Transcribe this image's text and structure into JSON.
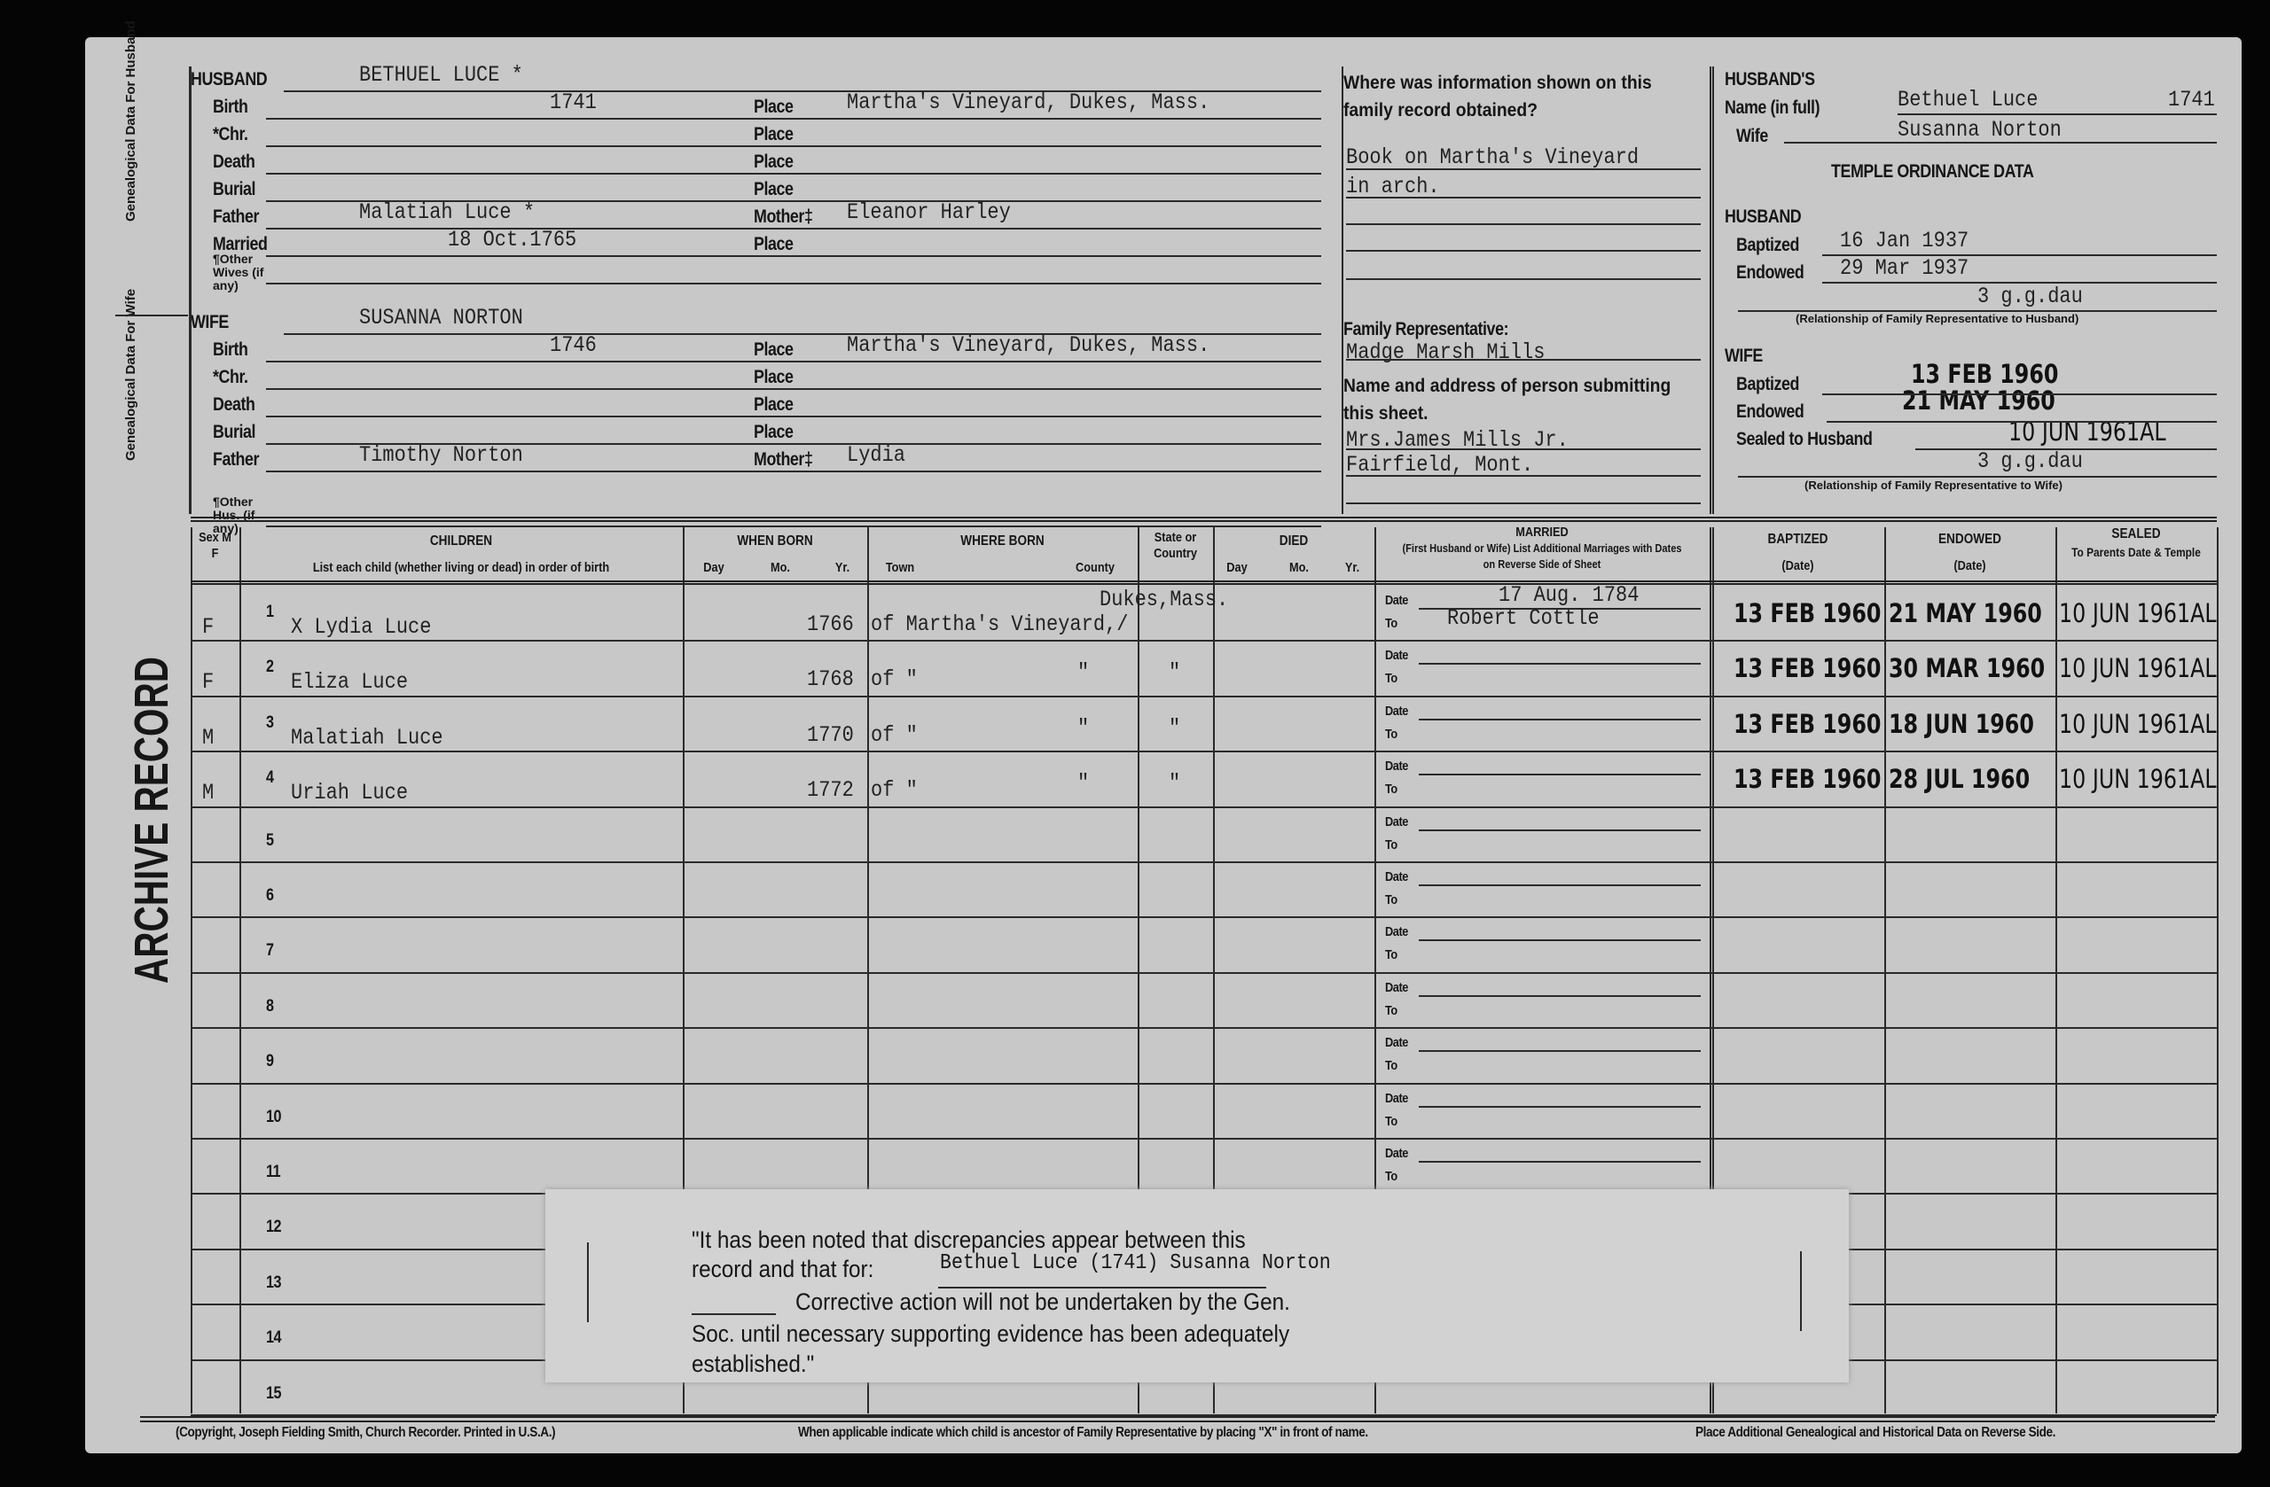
{
  "side_labels": {
    "husband": "Genealogical Data For Husband",
    "wife": "Genealogical Data For Wife",
    "archive": "ARCHIVE RECORD"
  },
  "husband": {
    "label": "HUSBAND",
    "name": "BETHUEL LUCE *",
    "birth_label": "Birth",
    "birth": "1741",
    "birth_place": "Martha's Vineyard, Dukes, Mass.",
    "chr_label": "*Chr.",
    "death_label": "Death",
    "burial_label": "Burial",
    "father_label": "Father",
    "father": "Malatiah Luce *",
    "mother_label": "Mother‡",
    "mother": "Eleanor Harley",
    "married_label": "Married",
    "married": "18 Oct.1765",
    "other_label": "¶Other Wives (if any)"
  },
  "wife": {
    "label": "WIFE",
    "name": "SUSANNA NORTON",
    "birth_label": "Birth",
    "birth": "1746",
    "birth_place": "Martha's Vineyard, Dukes, Mass.",
    "chr_label": "*Chr.",
    "death_label": "Death",
    "burial_label": "Burial",
    "father_label": "Father",
    "father": "Timothy Norton",
    "mother_label": "Mother‡",
    "mother": "Lydia",
    "other_label": "¶Other Hus. (if any)"
  },
  "place_label": "Place",
  "source": {
    "question": "Where was information shown on this family record obtained?",
    "line1": "Book on Martha's Vineyard",
    "line2": "in arch.",
    "rep_label": "Family Representative:",
    "rep": "Madge Marsh Mills",
    "submitter_label": "Name and address of person submitting this sheet.",
    "submitter1": "Mrs.James Mills Jr.",
    "submitter2": "Fairfield, Mont."
  },
  "ordinance": {
    "husbands_label": "HUSBAND'S",
    "name_label": "Name (in full)",
    "name": "Bethuel Luce",
    "year": "1741",
    "wife_label": "Wife",
    "wife": "Susanna Norton",
    "title": "TEMPLE ORDINANCE DATA",
    "husband_label": "HUSBAND",
    "baptized_label": "Baptized",
    "h_baptized": "16 Jan 1937",
    "endowed_label": "Endowed",
    "h_endowed": "29 Mar 1937",
    "h_relationship": "3 g.g.dau",
    "h_rel_caption": "(Relationship of Family Representative to Husband)",
    "wife_section_label": "WIFE",
    "w_baptized": "13 FEB 1960",
    "w_endowed": "21 MAY 1960",
    "sealed_label": "Sealed to Husband",
    "w_sealed": "10 JUN 1961AL",
    "w_relationship": "3 g.g.dau",
    "w_rel_caption": "(Relationship of Family Representative to Wife)"
  },
  "table_headers": {
    "sex": "Sex M F",
    "children": "CHILDREN",
    "children_sub": "List each child (whether living or dead) in order of birth",
    "when_born": "WHEN BORN",
    "day": "Day",
    "mo": "Mo.",
    "yr": "Yr.",
    "where_born": "WHERE BORN",
    "town": "Town",
    "county": "County",
    "state": "State or Country",
    "died": "DIED",
    "married": "MARRIED",
    "married_sub": "(First Husband or Wife) List Additional Marriages with Dates on Reverse Side of Sheet",
    "baptized": "BAPTIZED",
    "endowed": "ENDOWED",
    "date": "(Date)",
    "sealed": "SEALED",
    "sealed_sub": "To Parents Date & Temple",
    "date_label": "Date",
    "to_label": "To"
  },
  "children": [
    {
      "num": "1",
      "sex": "F",
      "name": "X Lydia Luce",
      "year": "1766",
      "town": "of Martha's Vineyard,/",
      "county": "Dukes,Mass.",
      "state": "",
      "married_date": "17 Aug. 1784",
      "married_to": "Robert Cottle",
      "baptized": "13 FEB 1960",
      "endowed": "21 MAY 1960",
      "sealed": "10 JUN 1961AL"
    },
    {
      "num": "2",
      "sex": "F",
      "name": "Eliza Luce",
      "year": "1768",
      "town": "of  \"",
      "county": "\"",
      "state": "\"",
      "married_date": "",
      "married_to": "",
      "baptized": "13 FEB 1960",
      "endowed": "30 MAR 1960",
      "sealed": "10 JUN 1961AL"
    },
    {
      "num": "3",
      "sex": "M",
      "name": "Malatiah Luce",
      "year": "1770",
      "town": "of  \"",
      "county": "\"",
      "state": "\"",
      "married_date": "",
      "married_to": "",
      "baptized": "13 FEB 1960",
      "endowed": "18 JUN 1960",
      "sealed": "10 JUN 1961AL"
    },
    {
      "num": "4",
      "sex": "M",
      "name": "Uriah Luce",
      "year": "1772",
      "town": "of  \"",
      "county": "\"",
      "state": "\"",
      "married_date": "",
      "married_to": "",
      "baptized": "13 FEB 1960",
      "endowed": "28 JUL 1960",
      "sealed": "10 JUN 1961AL"
    },
    {
      "num": "5"
    },
    {
      "num": "6"
    },
    {
      "num": "7"
    },
    {
      "num": "8"
    },
    {
      "num": "9"
    },
    {
      "num": "10"
    },
    {
      "num": "11"
    },
    {
      "num": "12"
    },
    {
      "num": "13"
    },
    {
      "num": "14"
    },
    {
      "num": "15"
    }
  ],
  "note": {
    "line1": "\"It has been noted that discrepancies appear between this",
    "line2_prefix": "record and that for:",
    "line2_value": "Bethuel Luce  (1741)  Susanna Norton",
    "line3": "Corrective action will not be undertaken by the Gen.",
    "line4": "Soc. until necessary supporting evidence has been adequately",
    "line5": "established.\""
  },
  "footer": {
    "left": "(Copyright, Joseph Fielding Smith, Church Recorder. Printed in U.S.A.)",
    "center": "When applicable indicate which child is ancestor of Family Representative by placing \"X\" in front of name.",
    "right": "Place Additional Genealogical and Historical Data on Reverse Side."
  }
}
